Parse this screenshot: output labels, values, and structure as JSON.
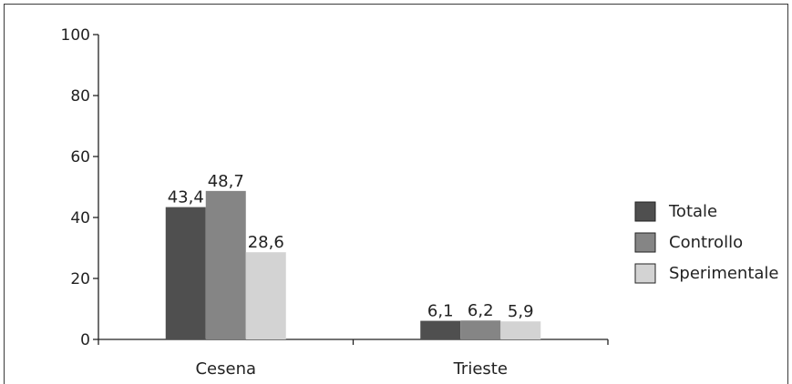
{
  "chart_data": {
    "type": "bar",
    "categories": [
      "Cesena",
      "Trieste"
    ],
    "series": [
      {
        "name": "Totale",
        "values": [
          43.4,
          6.1
        ],
        "labels": [
          "43,4",
          "6,1"
        ],
        "color": "#4f4f4f"
      },
      {
        "name": "Controllo",
        "values": [
          48.7,
          6.2
        ],
        "labels": [
          "48,7",
          "6,2"
        ],
        "color": "#858585"
      },
      {
        "name": "Sperimentale",
        "values": [
          28.6,
          5.9
        ],
        "labels": [
          "28,6",
          "5,9"
        ],
        "color": "#d3d3d3"
      }
    ],
    "ylim": [
      0,
      100
    ],
    "yticks": [
      0,
      20,
      40,
      60,
      80,
      100
    ],
    "ytick_labels": [
      "0",
      "20",
      "40",
      "60",
      "80",
      "100"
    ],
    "grid": false,
    "legend_position": "right"
  }
}
